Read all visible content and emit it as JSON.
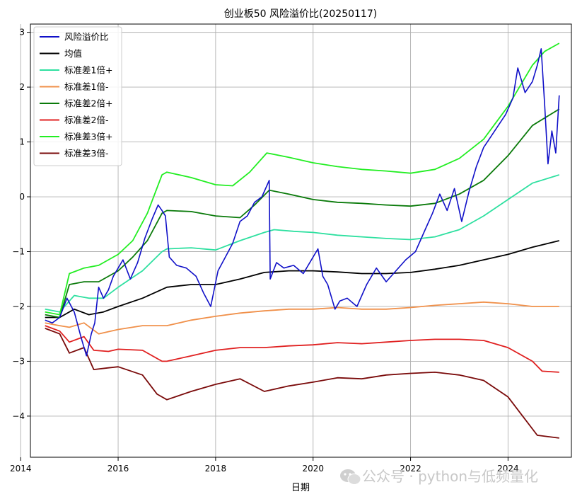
{
  "chart_data": {
    "type": "line",
    "title": "创业板50 风险溢价比(20250117)",
    "xlabel": "日期",
    "ylabel": "",
    "xlim": [
      2014.2,
      2025.3
    ],
    "ylim": [
      -4.75,
      3.15
    ],
    "xticks": [
      2014,
      2016,
      2018,
      2020,
      2022,
      2024
    ],
    "yticks": [
      -4,
      -3,
      -2,
      -1,
      0,
      1,
      2,
      3
    ],
    "grid": true,
    "legend_position": "top-left",
    "series": [
      {
        "name": "风险溢价比",
        "color": "#1010c8",
        "x": [
          2014.5,
          2014.65,
          2014.8,
          2014.95,
          2015.1,
          2015.25,
          2015.35,
          2015.45,
          2015.52,
          2015.6,
          2015.7,
          2015.8,
          2015.9,
          2016.0,
          2016.1,
          2016.25,
          2016.4,
          2016.55,
          2016.7,
          2016.82,
          2016.9,
          2016.97,
          2017.05,
          2017.2,
          2017.4,
          2017.6,
          2017.75,
          2017.9,
          2018.05,
          2018.2,
          2018.35,
          2018.5,
          2018.65,
          2018.8,
          2018.95,
          2019.05,
          2019.1,
          2019.12,
          2019.25,
          2019.4,
          2019.6,
          2019.8,
          2020.0,
          2020.1,
          2020.2,
          2020.3,
          2020.45,
          2020.55,
          2020.7,
          2020.9,
          2021.1,
          2021.3,
          2021.5,
          2021.7,
          2021.9,
          2022.1,
          2022.3,
          2022.45,
          2022.6,
          2022.75,
          2022.9,
          2023.05,
          2023.2,
          2023.35,
          2023.5,
          2023.65,
          2023.8,
          2023.95,
          2024.1,
          2024.2,
          2024.35,
          2024.5,
          2024.6,
          2024.68,
          2024.75,
          2024.82,
          2024.9,
          2024.98,
          2025.05
        ],
        "y": [
          -2.25,
          -2.3,
          -2.2,
          -1.85,
          -2.1,
          -2.6,
          -2.9,
          -2.5,
          -2.3,
          -1.65,
          -1.85,
          -1.7,
          -1.45,
          -1.3,
          -1.15,
          -1.5,
          -1.2,
          -0.75,
          -0.4,
          -0.15,
          -0.25,
          -0.35,
          -1.1,
          -1.25,
          -1.3,
          -1.45,
          -1.75,
          -2.0,
          -1.35,
          -1.1,
          -0.85,
          -0.45,
          -0.35,
          -0.1,
          0.0,
          0.2,
          0.3,
          -1.5,
          -1.2,
          -1.3,
          -1.25,
          -1.4,
          -1.1,
          -0.95,
          -1.45,
          -1.6,
          -2.05,
          -1.9,
          -1.85,
          -2.0,
          -1.6,
          -1.3,
          -1.55,
          -1.35,
          -1.15,
          -1.0,
          -0.6,
          -0.3,
          0.05,
          -0.25,
          0.15,
          -0.45,
          0.1,
          0.55,
          0.9,
          1.1,
          1.3,
          1.5,
          1.8,
          2.35,
          1.9,
          2.1,
          2.4,
          2.7,
          1.7,
          0.6,
          1.2,
          0.8,
          1.85
        ]
      },
      {
        "name": "均值",
        "color": "#000000",
        "x": [
          2014.5,
          2014.8,
          2015.1,
          2015.4,
          2015.7,
          2016.0,
          2016.5,
          2017.0,
          2017.5,
          2018.0,
          2018.5,
          2019.0,
          2019.5,
          2020.0,
          2020.5,
          2021.0,
          2021.5,
          2022.0,
          2022.5,
          2023.0,
          2023.5,
          2024.0,
          2024.5,
          2025.05
        ],
        "y": [
          -2.2,
          -2.2,
          -2.05,
          -2.15,
          -2.1,
          -2.0,
          -1.85,
          -1.65,
          -1.6,
          -1.6,
          -1.5,
          -1.38,
          -1.35,
          -1.35,
          -1.37,
          -1.4,
          -1.4,
          -1.38,
          -1.32,
          -1.25,
          -1.15,
          -1.05,
          -0.92,
          -0.8
        ]
      },
      {
        "name": "标准差1倍+",
        "color": "#2ee0a0",
        "x": [
          2014.5,
          2014.8,
          2015.1,
          2015.4,
          2015.7,
          2016.0,
          2016.5,
          2016.9,
          2017.0,
          2017.5,
          2018.0,
          2018.5,
          2019.0,
          2019.2,
          2019.6,
          2020.0,
          2020.5,
          2021.0,
          2021.5,
          2022.0,
          2022.5,
          2023.0,
          2023.5,
          2024.0,
          2024.5,
          2025.05
        ],
        "y": [
          -2.05,
          -2.1,
          -1.8,
          -1.85,
          -1.85,
          -1.65,
          -1.35,
          -1.0,
          -0.95,
          -0.93,
          -0.97,
          -0.8,
          -0.65,
          -0.6,
          -0.63,
          -0.65,
          -0.7,
          -0.73,
          -0.76,
          -0.78,
          -0.73,
          -0.6,
          -0.35,
          -0.05,
          0.25,
          0.4
        ]
      },
      {
        "name": "标准差1倍-",
        "color": "#f0904a",
        "x": [
          2014.5,
          2014.8,
          2015.0,
          2015.3,
          2015.6,
          2016.0,
          2016.5,
          2017.0,
          2017.5,
          2018.0,
          2018.5,
          2019.0,
          2019.5,
          2020.0,
          2020.5,
          2021.0,
          2021.5,
          2022.0,
          2022.5,
          2023.0,
          2023.5,
          2024.0,
          2024.5,
          2025.05
        ],
        "y": [
          -2.3,
          -2.35,
          -2.38,
          -2.3,
          -2.5,
          -2.42,
          -2.35,
          -2.35,
          -2.25,
          -2.18,
          -2.12,
          -2.08,
          -2.05,
          -2.05,
          -2.02,
          -2.05,
          -2.05,
          -2.02,
          -1.98,
          -1.95,
          -1.92,
          -1.95,
          -2.0,
          -2.0
        ]
      },
      {
        "name": "标准差2倍+",
        "color": "#0a7a0a",
        "x": [
          2014.5,
          2014.8,
          2015.0,
          2015.3,
          2015.6,
          2016.0,
          2016.3,
          2016.6,
          2016.9,
          2017.0,
          2017.5,
          2018.0,
          2018.5,
          2018.8,
          2019.1,
          2019.5,
          2020.0,
          2020.5,
          2021.0,
          2021.5,
          2022.0,
          2022.5,
          2023.0,
          2023.5,
          2024.0,
          2024.5,
          2025.05
        ],
        "y": [
          -2.15,
          -2.2,
          -1.6,
          -1.55,
          -1.55,
          -1.35,
          -1.1,
          -0.8,
          -0.3,
          -0.25,
          -0.27,
          -0.35,
          -0.38,
          -0.15,
          0.12,
          0.05,
          -0.05,
          -0.1,
          -0.12,
          -0.15,
          -0.17,
          -0.12,
          0.05,
          0.3,
          0.75,
          1.3,
          1.6
        ]
      },
      {
        "name": "标准差2倍-",
        "color": "#e02020",
        "x": [
          2014.5,
          2014.8,
          2015.0,
          2015.3,
          2015.5,
          2015.8,
          2016.0,
          2016.5,
          2016.9,
          2017.0,
          2017.5,
          2018.0,
          2018.5,
          2019.0,
          2019.5,
          2020.0,
          2020.5,
          2021.0,
          2021.5,
          2022.0,
          2022.5,
          2023.0,
          2023.5,
          2024.0,
          2024.5,
          2024.7,
          2025.05
        ],
        "y": [
          -2.35,
          -2.45,
          -2.65,
          -2.55,
          -2.8,
          -2.82,
          -2.78,
          -2.8,
          -3.0,
          -3.0,
          -2.9,
          -2.8,
          -2.75,
          -2.75,
          -2.72,
          -2.7,
          -2.66,
          -2.68,
          -2.65,
          -2.62,
          -2.6,
          -2.6,
          -2.62,
          -2.75,
          -3.0,
          -3.18,
          -3.2
        ]
      },
      {
        "name": "标准差3倍+",
        "color": "#22ee22",
        "x": [
          2014.5,
          2014.8,
          2015.0,
          2015.3,
          2015.6,
          2016.0,
          2016.3,
          2016.6,
          2016.9,
          2017.0,
          2017.5,
          2018.0,
          2018.35,
          2018.7,
          2019.05,
          2019.5,
          2020.0,
          2020.5,
          2021.0,
          2021.5,
          2022.0,
          2022.5,
          2023.0,
          2023.5,
          2024.0,
          2024.5,
          2024.75,
          2025.05
        ],
        "y": [
          -2.1,
          -2.15,
          -1.4,
          -1.3,
          -1.25,
          -1.05,
          -0.8,
          -0.3,
          0.4,
          0.45,
          0.35,
          0.22,
          0.2,
          0.45,
          0.8,
          0.72,
          0.62,
          0.55,
          0.5,
          0.47,
          0.43,
          0.5,
          0.7,
          1.05,
          1.65,
          2.4,
          2.65,
          2.8
        ]
      },
      {
        "name": "标准差3倍-",
        "color": "#7a0a0a",
        "x": [
          2014.5,
          2014.8,
          2015.0,
          2015.3,
          2015.5,
          2015.8,
          2016.0,
          2016.5,
          2016.8,
          2017.0,
          2017.5,
          2018.0,
          2018.5,
          2019.0,
          2019.5,
          2020.0,
          2020.5,
          2021.0,
          2021.5,
          2022.0,
          2022.5,
          2023.0,
          2023.5,
          2024.0,
          2024.3,
          2024.6,
          2025.05
        ],
        "y": [
          -2.4,
          -2.5,
          -2.85,
          -2.75,
          -3.15,
          -3.12,
          -3.1,
          -3.25,
          -3.6,
          -3.7,
          -3.55,
          -3.42,
          -3.32,
          -3.55,
          -3.45,
          -3.38,
          -3.3,
          -3.32,
          -3.25,
          -3.22,
          -3.2,
          -3.25,
          -3.35,
          -3.65,
          -4.0,
          -4.35,
          -4.4
        ]
      }
    ]
  },
  "watermark": {
    "icon": "wechat-icon",
    "text": "公众号 · python与低频量化"
  }
}
